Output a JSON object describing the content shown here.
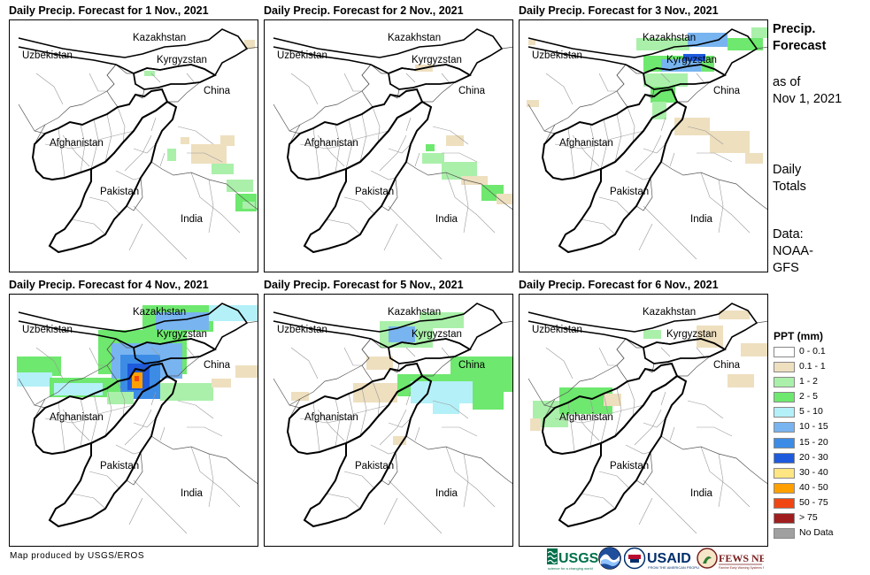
{
  "panels": [
    {
      "title": "Daily Precip. Forecast for 1 Nov., 2021",
      "precip": [
        {
          "x": 193,
          "y": 132,
          "w": 10,
          "h": 8,
          "cat": "0.1 - 1"
        },
        {
          "x": 205,
          "y": 140,
          "w": 40,
          "h": 22,
          "cat": "0.1 - 1"
        },
        {
          "x": 228,
          "y": 162,
          "w": 25,
          "h": 12,
          "cat": "1 - 2"
        },
        {
          "x": 245,
          "y": 180,
          "w": 30,
          "h": 14,
          "cat": "1 - 2"
        },
        {
          "x": 255,
          "y": 196,
          "w": 24,
          "h": 20,
          "cat": "2 - 5"
        },
        {
          "x": 263,
          "y": 205,
          "w": 14,
          "h": 8,
          "cat": "1 - 2"
        },
        {
          "x": 238,
          "y": 130,
          "w": 16,
          "h": 12,
          "cat": "0.1 - 1"
        },
        {
          "x": 152,
          "y": 57,
          "w": 12,
          "h": 6,
          "cat": "1 - 2"
        },
        {
          "x": 265,
          "y": 22,
          "w": 12,
          "h": 10,
          "cat": "0.1 - 1"
        },
        {
          "x": 178,
          "y": 145,
          "w": 10,
          "h": 14,
          "cat": "1 - 2"
        }
      ]
    },
    {
      "title": "Daily Precip. Forecast for 2 Nov., 2021",
      "precip": [
        {
          "x": 178,
          "y": 150,
          "w": 25,
          "h": 12,
          "cat": "1 - 2"
        },
        {
          "x": 200,
          "y": 160,
          "w": 40,
          "h": 20,
          "cat": "1 - 2"
        },
        {
          "x": 222,
          "y": 176,
          "w": 30,
          "h": 10,
          "cat": "0.1 - 1"
        },
        {
          "x": 245,
          "y": 186,
          "w": 25,
          "h": 18,
          "cat": "2 - 5"
        },
        {
          "x": 262,
          "y": 196,
          "w": 18,
          "h": 12,
          "cat": "0.1 - 1"
        },
        {
          "x": 205,
          "y": 130,
          "w": 20,
          "h": 12,
          "cat": "0.1 - 1"
        },
        {
          "x": 170,
          "y": 50,
          "w": 20,
          "h": 8,
          "cat": "0.1 - 1"
        },
        {
          "x": 182,
          "y": 140,
          "w": 10,
          "h": 8,
          "cat": "2 - 5"
        }
      ]
    },
    {
      "title": "Daily Precip. Forecast for 3 Nov., 2021",
      "precip": [
        {
          "x": 132,
          "y": 20,
          "w": 60,
          "h": 14,
          "cat": "1 - 2"
        },
        {
          "x": 190,
          "y": 14,
          "w": 45,
          "h": 16,
          "cat": "10 - 15"
        },
        {
          "x": 235,
          "y": 20,
          "w": 40,
          "h": 14,
          "cat": "2 - 5"
        },
        {
          "x": 262,
          "y": 8,
          "w": 18,
          "h": 12,
          "cat": "1 - 2"
        },
        {
          "x": 140,
          "y": 40,
          "w": 80,
          "h": 18,
          "cat": "2 - 5"
        },
        {
          "x": 160,
          "y": 44,
          "w": 45,
          "h": 14,
          "cat": "10 - 15"
        },
        {
          "x": 185,
          "y": 38,
          "w": 25,
          "h": 8,
          "cat": "20 - 30"
        },
        {
          "x": 140,
          "y": 60,
          "w": 50,
          "h": 15,
          "cat": "1 - 2"
        },
        {
          "x": 148,
          "y": 75,
          "w": 28,
          "h": 18,
          "cat": "2 - 5"
        },
        {
          "x": 150,
          "y": 92,
          "w": 16,
          "h": 20,
          "cat": "1 - 2"
        },
        {
          "x": 175,
          "y": 110,
          "w": 40,
          "h": 20,
          "cat": "0.1 - 1"
        },
        {
          "x": 215,
          "y": 125,
          "w": 45,
          "h": 25,
          "cat": "0.1 - 1"
        },
        {
          "x": 255,
          "y": 150,
          "w": 20,
          "h": 12,
          "cat": "0.1 - 1"
        },
        {
          "x": 8,
          "y": 90,
          "w": 14,
          "h": 8,
          "cat": "0.1 - 1"
        },
        {
          "x": 10,
          "y": 22,
          "w": 8,
          "h": 6,
          "cat": "0.1 - 1"
        }
      ]
    },
    {
      "title": "Daily Precip. Forecast for 4 Nov., 2021",
      "precip": [
        {
          "x": 8,
          "y": 70,
          "w": 50,
          "h": 22,
          "cat": "2 - 5"
        },
        {
          "x": 8,
          "y": 88,
          "w": 40,
          "h": 16,
          "cat": "5 - 10"
        },
        {
          "x": 45,
          "y": 94,
          "w": 80,
          "h": 22,
          "cat": "2 - 5"
        },
        {
          "x": 50,
          "y": 100,
          "w": 55,
          "h": 14,
          "cat": "5 - 10"
        },
        {
          "x": 100,
          "y": 40,
          "w": 100,
          "h": 50,
          "cat": "2 - 5"
        },
        {
          "x": 115,
          "y": 55,
          "w": 80,
          "h": 40,
          "cat": "10 - 15"
        },
        {
          "x": 125,
          "y": 68,
          "w": 45,
          "h": 50,
          "cat": "15 - 20"
        },
        {
          "x": 133,
          "y": 78,
          "w": 25,
          "h": 30,
          "cat": "20 - 30"
        },
        {
          "x": 138,
          "y": 88,
          "w": 12,
          "h": 18,
          "cat": "40 - 50"
        },
        {
          "x": 141,
          "y": 92,
          "w": 5,
          "h": 6,
          "cat": "50 - 75"
        },
        {
          "x": 150,
          "y": 12,
          "w": 80,
          "h": 30,
          "cat": "2 - 5"
        },
        {
          "x": 165,
          "y": 20,
          "w": 60,
          "h": 20,
          "cat": "10 - 15"
        },
        {
          "x": 225,
          "y": 12,
          "w": 55,
          "h": 18,
          "cat": "5 - 10"
        },
        {
          "x": 170,
          "y": 100,
          "w": 60,
          "h": 20,
          "cat": "1 - 2"
        },
        {
          "x": 110,
          "y": 110,
          "w": 30,
          "h": 14,
          "cat": "1 - 2"
        },
        {
          "x": 255,
          "y": 80,
          "w": 25,
          "h": 14,
          "cat": "0.1 - 1"
        },
        {
          "x": 228,
          "y": 95,
          "w": 22,
          "h": 10,
          "cat": "0.1 - 1"
        }
      ]
    },
    {
      "title": "Daily Precip. Forecast for 5 Nov., 2021",
      "precip": [
        {
          "x": 130,
          "y": 30,
          "w": 60,
          "h": 30,
          "cat": "1 - 2"
        },
        {
          "x": 140,
          "y": 36,
          "w": 30,
          "h": 18,
          "cat": "10 - 15"
        },
        {
          "x": 175,
          "y": 20,
          "w": 50,
          "h": 18,
          "cat": "1 - 2"
        },
        {
          "x": 210,
          "y": 70,
          "w": 70,
          "h": 40,
          "cat": "2 - 5"
        },
        {
          "x": 150,
          "y": 90,
          "w": 80,
          "h": 25,
          "cat": "2 - 5"
        },
        {
          "x": 165,
          "y": 98,
          "w": 70,
          "h": 25,
          "cat": "5 - 10"
        },
        {
          "x": 190,
          "y": 115,
          "w": 30,
          "h": 20,
          "cat": "5 - 10"
        },
        {
          "x": 100,
          "y": 100,
          "w": 50,
          "h": 22,
          "cat": "0.1 - 1"
        },
        {
          "x": 115,
          "y": 70,
          "w": 30,
          "h": 15,
          "cat": "0.1 - 1"
        },
        {
          "x": 235,
          "y": 110,
          "w": 35,
          "h": 20,
          "cat": "2 - 5"
        },
        {
          "x": 30,
          "y": 110,
          "w": 20,
          "h": 10,
          "cat": "0.1 - 1"
        },
        {
          "x": 145,
          "y": 160,
          "w": 15,
          "h": 10,
          "cat": "0.1 - 1"
        }
      ]
    },
    {
      "title": "Daily Precip. Forecast for 6 Nov., 2021",
      "precip": [
        {
          "x": 15,
          "y": 120,
          "w": 40,
          "h": 30,
          "cat": "1 - 2"
        },
        {
          "x": 45,
          "y": 105,
          "w": 60,
          "h": 30,
          "cat": "2 - 5"
        },
        {
          "x": 95,
          "y": 112,
          "w": 20,
          "h": 14,
          "cat": "0.1 - 1"
        },
        {
          "x": 200,
          "y": 35,
          "w": 30,
          "h": 25,
          "cat": "0.1 - 1"
        },
        {
          "x": 140,
          "y": 40,
          "w": 20,
          "h": 10,
          "cat": "1 - 2"
        },
        {
          "x": 235,
          "y": 90,
          "w": 30,
          "h": 15,
          "cat": "0.1 - 1"
        },
        {
          "x": 250,
          "y": 55,
          "w": 30,
          "h": 15,
          "cat": "0.1 - 1"
        },
        {
          "x": 12,
          "y": 140,
          "w": 12,
          "h": 14,
          "cat": "0.1 - 1"
        },
        {
          "x": 225,
          "y": 18,
          "w": 35,
          "h": 10,
          "cat": "0.1 - 1"
        }
      ]
    }
  ],
  "map_labels": {
    "kazakhstan": "Kazakhstan",
    "kyrgyzstan": "Kyrgyzstan",
    "uzbekistan": "Uzbekistan",
    "china": "China",
    "afghanistan": "Afghanistan",
    "pakistan": "Pakistan",
    "india": "India"
  },
  "sidebar": {
    "heading_line1": "Precip.",
    "heading_line2": "Forecast",
    "asof_line1": "as of",
    "asof_line2": "Nov 1, 2021",
    "daily_line1": "Daily",
    "daily_line2": "Totals",
    "data_line1": "Data:",
    "data_line2": "NOAA-",
    "data_line3": "GFS"
  },
  "legend": {
    "title": "PPT (mm)",
    "items": [
      {
        "label": "0 - 0.1",
        "color": "#ffffff"
      },
      {
        "label": "0.1 - 1",
        "color": "#eedfbf"
      },
      {
        "label": "1 - 2",
        "color": "#aaf0aa"
      },
      {
        "label": "2 - 5",
        "color": "#6ee86e"
      },
      {
        "label": "5 - 10",
        "color": "#b4f0f8"
      },
      {
        "label": "10 - 15",
        "color": "#78b4f0"
      },
      {
        "label": "15 - 20",
        "color": "#3c8ce6"
      },
      {
        "label": "20 - 30",
        "color": "#1e5adc"
      },
      {
        "label": "30 - 40",
        "color": "#ffe682"
      },
      {
        "label": "40 - 50",
        "color": "#ffa000"
      },
      {
        "label": "50 - 75",
        "color": "#f04614"
      },
      {
        "label": "> 75",
        "color": "#a01e1e"
      },
      {
        "label": "No Data",
        "color": "#a0a0a0"
      }
    ]
  },
  "footer": {
    "credit": "Map produced by USGS/EROS",
    "usgs": "USGS",
    "usaid": "USAID",
    "fewsnet": "FEWS NET"
  }
}
